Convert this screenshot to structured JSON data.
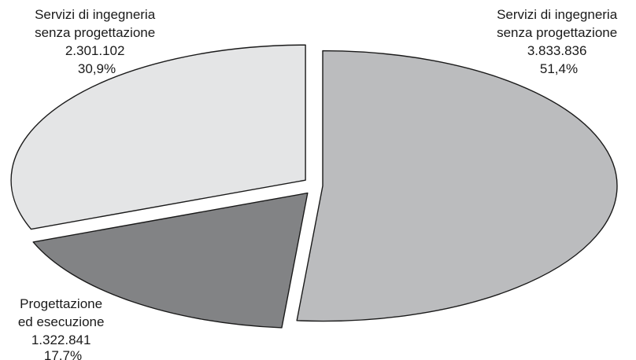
{
  "chart_data": {
    "type": "pie",
    "title": "",
    "slices": [
      {
        "label_lines": [
          "Servizi di ingegneria",
          "senza progettazione"
        ],
        "value": "3.833.836",
        "percent": "51,4%",
        "pct": 51.4,
        "color": "#bbbcbe"
      },
      {
        "label_lines": [
          "Progettazione",
          "ed esecuzione"
        ],
        "value": "1.322.841",
        "percent": "17,7%",
        "pct": 17.7,
        "color": "#828385"
      },
      {
        "label_lines": [
          "Servizi di ingegneria",
          "senza progettazione"
        ],
        "value": "2.301.102",
        "percent": "30,9%",
        "pct": 30.9,
        "color": "#e4e5e6"
      }
    ]
  }
}
